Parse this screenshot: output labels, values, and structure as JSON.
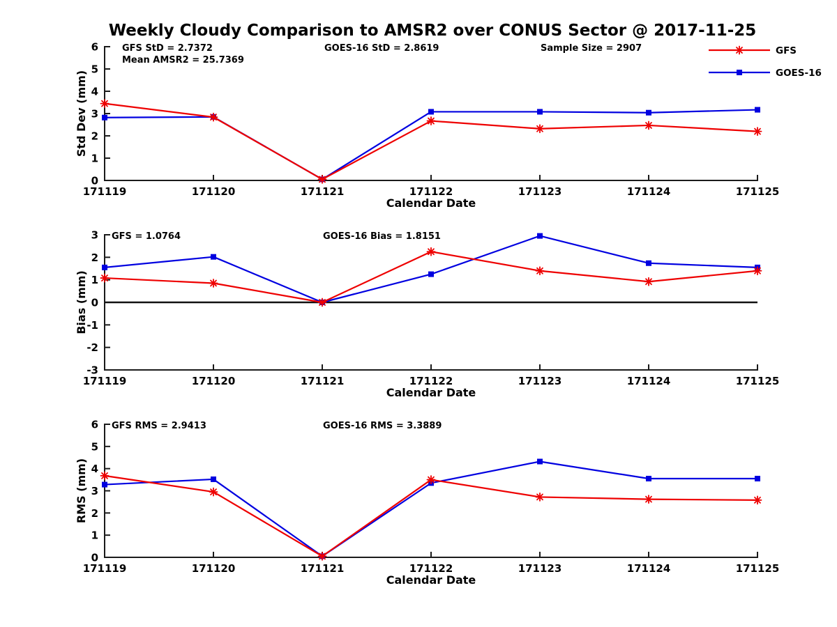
{
  "title": "Weekly Cloudy Comparison to AMSR2 over CONUS Sector @ 2017-11-25",
  "colors": {
    "gfs": "#ee0000",
    "goes16": "#0000e0",
    "axis": "#1a1a1a",
    "text": "#000000",
    "zero_line": "#111111",
    "background": "#ffffff"
  },
  "legend": {
    "position": "top-right",
    "entries": [
      {
        "label": "GFS",
        "color_key": "gfs",
        "marker": "asterisk"
      },
      {
        "label": "GOES-16",
        "color_key": "goes16",
        "marker": "square"
      }
    ]
  },
  "chart_data": [
    {
      "type": "line",
      "title": "",
      "xlabel": "Calendar Date",
      "ylabel": "Std Dev (mm)",
      "ylim": [
        0,
        6
      ],
      "yticks": [
        0,
        1,
        2,
        3,
        4,
        5,
        6
      ],
      "grid": false,
      "zero_line": false,
      "categories": [
        "171119",
        "171120",
        "171121",
        "171122",
        "171123",
        "171124",
        "171125"
      ],
      "annotations": [
        {
          "text": "GFS StD = 2.7372",
          "x_offset": 25,
          "row": 0
        },
        {
          "text": "Mean AMSR2 = 25.7369",
          "x_offset": 25,
          "row": 1
        },
        {
          "text": "GOES-16 StD = 2.8619",
          "x_offset": 315,
          "row": 0
        },
        {
          "text": "Sample Size = 2907",
          "x_offset": 625,
          "row": 0
        }
      ],
      "series": [
        {
          "name": "GOES-16",
          "color_key": "goes16",
          "marker": "square",
          "values": [
            2.82,
            2.85,
            0.05,
            3.08,
            3.08,
            3.04,
            3.17
          ]
        },
        {
          "name": "GFS",
          "color_key": "gfs",
          "marker": "asterisk",
          "values": [
            3.45,
            2.84,
            0.05,
            2.67,
            2.32,
            2.47,
            2.2
          ]
        }
      ]
    },
    {
      "type": "line",
      "title": "",
      "xlabel": "Calendar Date",
      "ylabel": "Bias (mm)",
      "ylim": [
        -3,
        3
      ],
      "yticks": [
        -3,
        -2,
        -1,
        0,
        1,
        2,
        3
      ],
      "grid": false,
      "zero_line": true,
      "categories": [
        "171119",
        "171120",
        "171121",
        "171122",
        "171123",
        "171124",
        "171125"
      ],
      "annotations": [
        {
          "text": "GFS = 1.0764",
          "x_offset": 10,
          "row": 0
        },
        {
          "text": "GOES-16 Bias  = 1.8151",
          "x_offset": 313,
          "row": 0
        }
      ],
      "series": [
        {
          "name": "GOES-16",
          "color_key": "goes16",
          "marker": "square",
          "values": [
            1.55,
            2.02,
            0.0,
            1.25,
            2.95,
            1.74,
            1.55
          ]
        },
        {
          "name": "GFS",
          "color_key": "gfs",
          "marker": "asterisk",
          "values": [
            1.08,
            0.85,
            0.0,
            2.25,
            1.4,
            0.92,
            1.4
          ]
        }
      ]
    },
    {
      "type": "line",
      "title": "",
      "xlabel": "Calendar Date",
      "ylabel": "RMS (mm)",
      "ylim": [
        0,
        6
      ],
      "yticks": [
        0,
        1,
        2,
        3,
        4,
        5,
        6
      ],
      "grid": false,
      "zero_line": false,
      "categories": [
        "171119",
        "171120",
        "171121",
        "171122",
        "171123",
        "171124",
        "171125"
      ],
      "annotations": [
        {
          "text": "GFS RMS = 2.9413",
          "x_offset": 10,
          "row": 0
        },
        {
          "text": "GOES-16 RMS = 3.3889",
          "x_offset": 313,
          "row": 0
        }
      ],
      "series": [
        {
          "name": "GOES-16",
          "color_key": "goes16",
          "marker": "square",
          "values": [
            3.28,
            3.52,
            0.05,
            3.35,
            4.32,
            3.55,
            3.55
          ]
        },
        {
          "name": "GFS",
          "color_key": "gfs",
          "marker": "asterisk",
          "values": [
            3.68,
            2.95,
            0.05,
            3.5,
            2.72,
            2.62,
            2.58
          ]
        }
      ]
    }
  ]
}
